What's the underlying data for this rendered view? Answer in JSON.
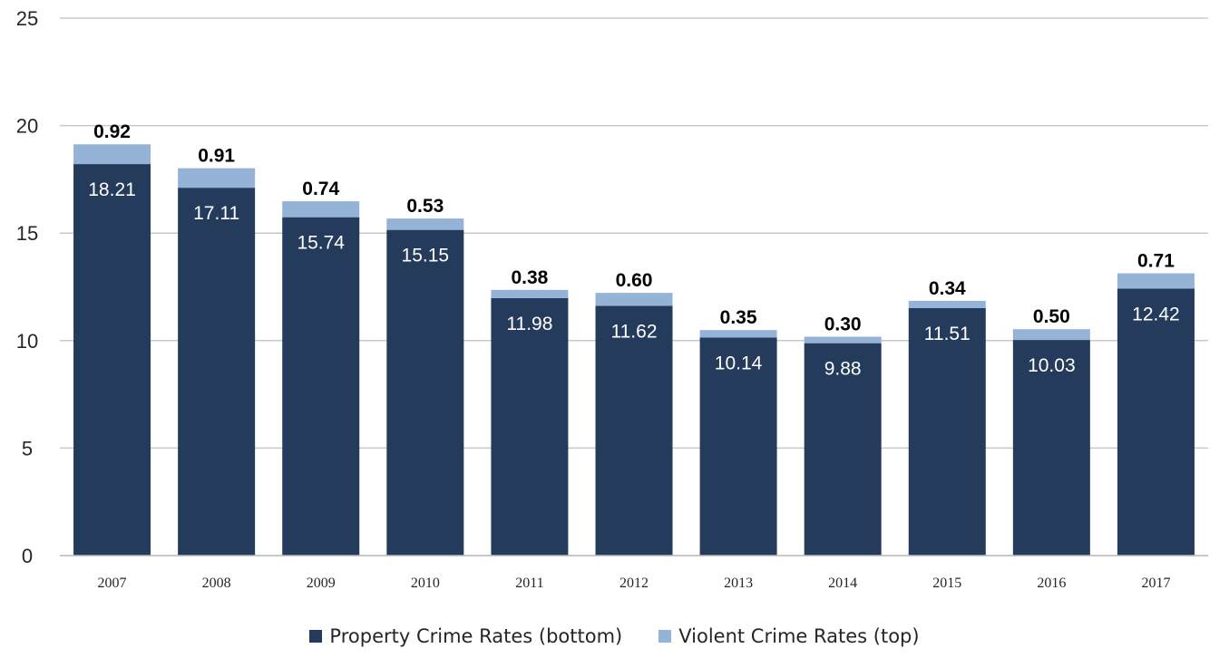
{
  "chart_data": {
    "type": "bar",
    "stacked": true,
    "categories": [
      "2007",
      "2008",
      "2009",
      "2010",
      "2011",
      "2012",
      "2013",
      "2014",
      "2015",
      "2016",
      "2017"
    ],
    "series": [
      {
        "name": "Property Crime Rates (bottom)",
        "color": "#243b5c",
        "values": [
          18.21,
          17.11,
          15.74,
          15.15,
          11.98,
          11.62,
          10.14,
          9.88,
          11.51,
          10.03,
          12.42
        ],
        "labels": [
          "18.21",
          "17.11",
          "15.74",
          "15.15",
          "11.98",
          "11.62",
          "10.14",
          "9.88",
          "11.51",
          "10.03",
          "12.42"
        ]
      },
      {
        "name": "Violent Crime Rates (top)",
        "color": "#95b3d7",
        "values": [
          0.92,
          0.91,
          0.74,
          0.53,
          0.38,
          0.6,
          0.35,
          0.3,
          0.34,
          0.5,
          0.71
        ],
        "labels": [
          "0.92",
          "0.91",
          "0.74",
          "0.53",
          "0.38",
          "0.60",
          "0.35",
          "0.30",
          "0.34",
          "0.50",
          "0.71"
        ]
      }
    ],
    "ylim": [
      0,
      25
    ],
    "yticks": [
      "0",
      "5",
      "10",
      "15",
      "20",
      "25"
    ],
    "grid": true,
    "legend_position": "bottom"
  }
}
